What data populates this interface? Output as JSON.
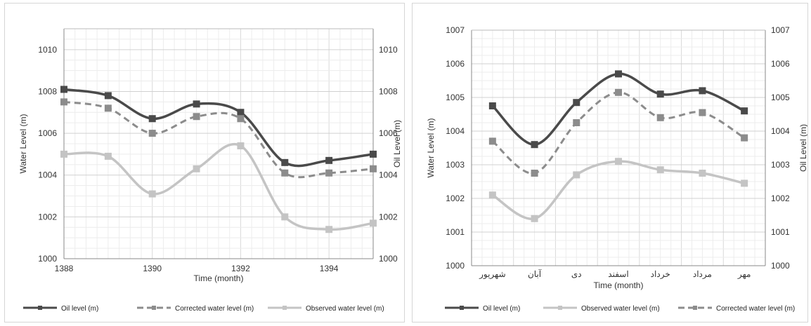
{
  "chart_data": [
    {
      "type": "line",
      "x": [
        1388,
        1389,
        1390,
        1391,
        1392,
        1393,
        1394,
        1395
      ],
      "x_ticks": [
        "1388",
        "1390",
        "1392",
        "1394"
      ],
      "xlabel": "Time (month)",
      "ylabel": "Water Level (m)",
      "y2label": "Oil Level (m)",
      "ylim": [
        1000,
        1011
      ],
      "y_ticks": [
        "1000",
        "1002",
        "1004",
        "1006",
        "1008",
        "1010"
      ],
      "grid": true,
      "legend_position": "bottom",
      "series": [
        {
          "name": "Oil level (m)",
          "style": "solid",
          "color": "#4a4a4a",
          "values": [
            1008.1,
            1007.8,
            1006.7,
            1007.4,
            1007.0,
            1004.6,
            1004.7,
            1005.0
          ]
        },
        {
          "name": "Corrected water level (m)",
          "style": "dashed",
          "color": "#8c8c8c",
          "values": [
            1007.5,
            1007.2,
            1006.0,
            1006.8,
            1006.7,
            1004.1,
            1004.1,
            1004.3
          ]
        },
        {
          "name": "Observed water level (m)",
          "style": "solid",
          "color": "#c4c4c4",
          "values": [
            1005.0,
            1004.9,
            1003.1,
            1004.3,
            1005.4,
            1002.0,
            1001.4,
            1001.7
          ]
        }
      ]
    },
    {
      "type": "line",
      "categories": [
        "شهریور",
        "آبان",
        "دی",
        "اسفند",
        "خرداد",
        "مرداد",
        "مهر"
      ],
      "xlabel": "Time (month)",
      "ylabel": "Water Level (m)",
      "y2label": "Oil Level (m)",
      "ylim": [
        1000,
        1007
      ],
      "y_ticks": [
        "1000",
        "1001",
        "1002",
        "1003",
        "1004",
        "1005",
        "1006",
        "1007"
      ],
      "grid": true,
      "legend_position": "bottom",
      "series": [
        {
          "name": "Oil level (m)",
          "style": "solid",
          "color": "#4a4a4a",
          "values": [
            1004.75,
            1003.6,
            1004.85,
            1005.7,
            1005.1,
            1005.2,
            1004.6
          ]
        },
        {
          "name": "Observed water level (m)",
          "style": "solid",
          "color": "#c4c4c4",
          "values": [
            1002.1,
            1001.4,
            1002.7,
            1003.1,
            1002.85,
            1002.75,
            1002.45
          ]
        },
        {
          "name": "Corrected water level (m)",
          "style": "dashed",
          "color": "#8c8c8c",
          "values": [
            1003.7,
            1002.75,
            1004.25,
            1005.15,
            1004.4,
            1004.55,
            1003.8
          ]
        }
      ]
    }
  ]
}
